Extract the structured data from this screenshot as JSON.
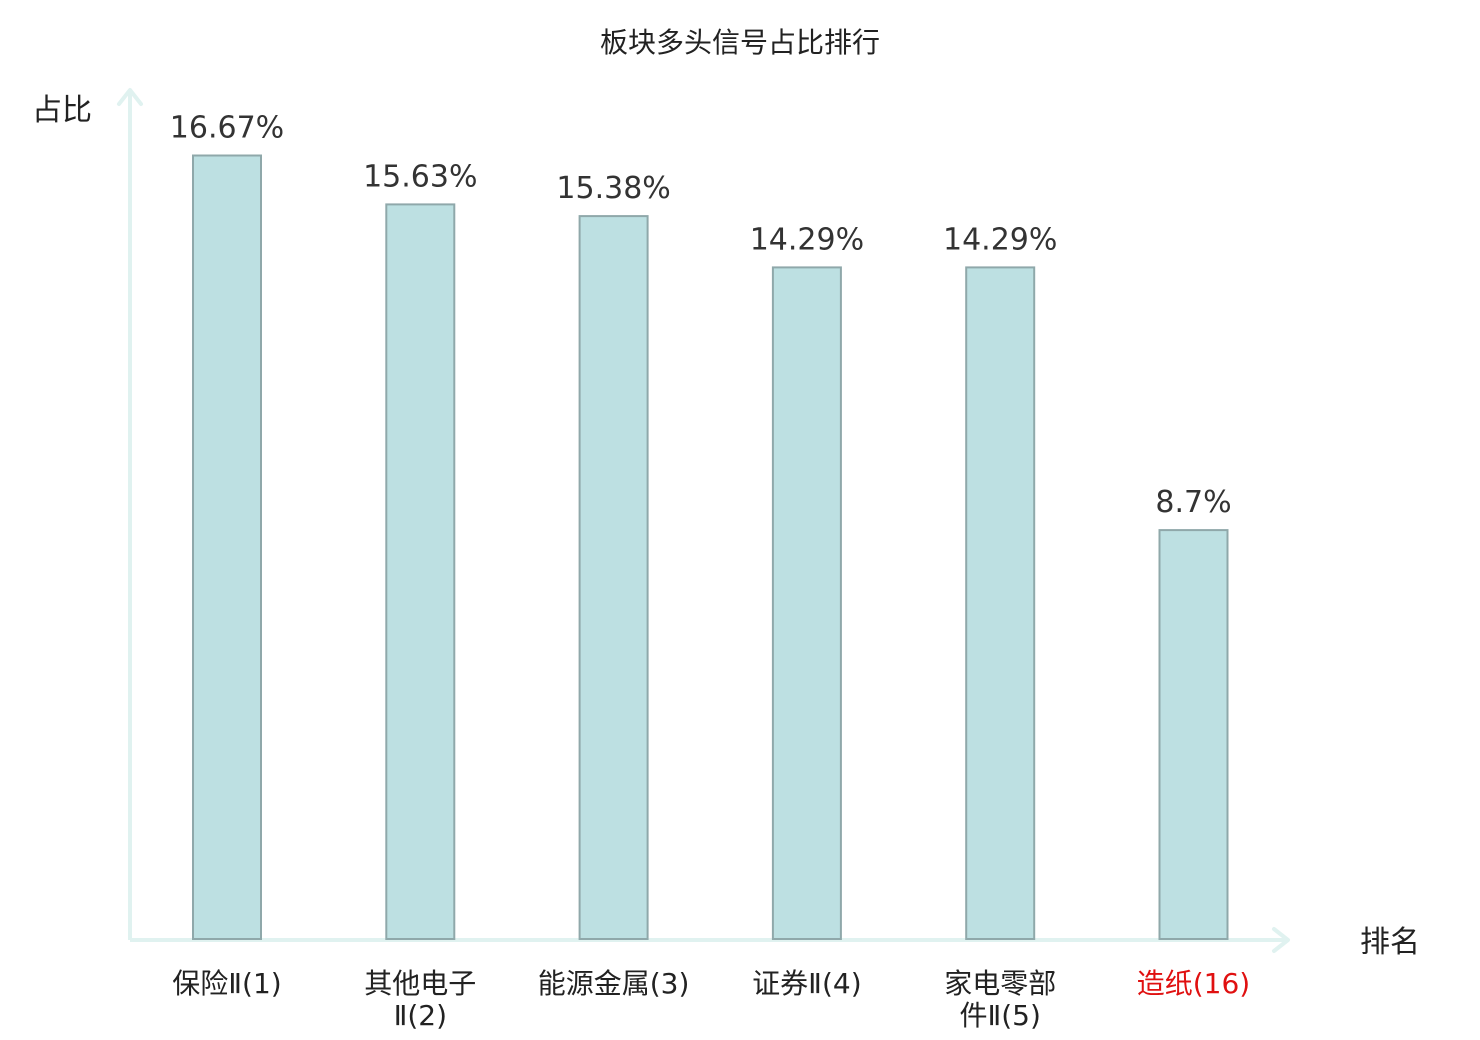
{
  "chart_data": {
    "type": "bar",
    "title": "板块多头信号占比排行",
    "ylabel": "占比",
    "xlabel": "排名",
    "categories": [
      [
        "保险Ⅱ(1)"
      ],
      [
        "其他电子",
        "Ⅱ(2)"
      ],
      [
        "能源金属(3)"
      ],
      [
        "证券Ⅱ(4)"
      ],
      [
        "家电零部",
        "件Ⅱ(5)"
      ],
      [
        "造纸(16)"
      ]
    ],
    "values": [
      16.67,
      15.63,
      15.38,
      14.29,
      14.29,
      8.7
    ],
    "value_labels": [
      "16.67%",
      "15.63%",
      "15.38%",
      "14.29%",
      "14.29%",
      "8.7%"
    ],
    "highlight_index": 5,
    "ylim": [
      0,
      18
    ],
    "grid": false,
    "colors": {
      "bar_fill": "#bde0e2",
      "bar_stroke": "#8fa8aa",
      "axis": "#e0f2f0",
      "label": "#222222",
      "highlight": "#e01010"
    }
  }
}
